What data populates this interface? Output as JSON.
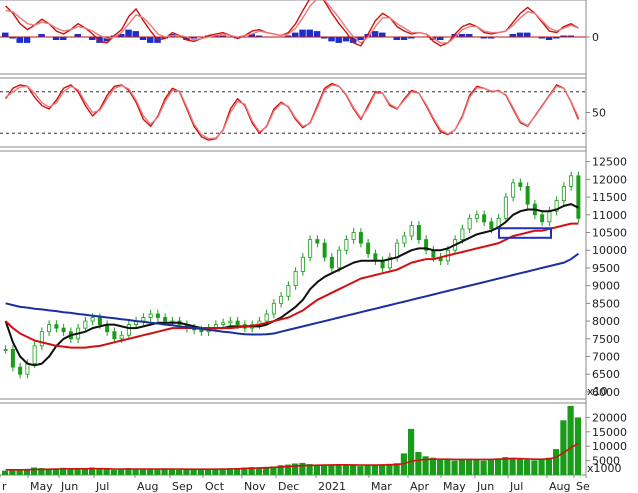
{
  "chart_data": [
    {
      "type": "line",
      "panel": "macd",
      "ytick_labels": [
        "0"
      ],
      "series": [
        {
          "color": "#d01010",
          "values": [
            2.1,
            1.6,
            0.9,
            0.5,
            0.8,
            1.2,
            0.9,
            0.4,
            0.2,
            0.5,
            0.9,
            0.6,
            0.2,
            -0.3,
            -0.4,
            0.1,
            0.5,
            1.4,
            1.9,
            1.1,
            0.4,
            -0.2,
            -0.1,
            0.3,
            0.1,
            -0.2,
            -0.3,
            -0.1,
            0.1,
            0.2,
            0.3,
            0.1,
            -0.1,
            0.1,
            0.4,
            0.5,
            0.3,
            0.2,
            0.1,
            0.3,
            0.9,
            1.8,
            2.6,
            3.0,
            2.4,
            1.6,
            0.9,
            0.3,
            -0.4,
            -0.6,
            0.2,
            1.1,
            1.6,
            1.3,
            0.7,
            0.4,
            0.2,
            0.3,
            0.2,
            -0.3,
            -0.6,
            -0.4,
            0.2,
            0.7,
            0.9,
            0.7,
            0.3,
            0.2,
            0.3,
            0.4,
            1.0,
            1.6,
            2.0,
            1.6,
            1.0,
            0.4,
            0.3,
            0.7,
            0.9,
            0.6
          ]
        },
        {
          "color": "#e87a7a",
          "values": [
            1.8,
            1.7,
            1.3,
            0.9,
            0.8,
            1.0,
            0.9,
            0.6,
            0.4,
            0.5,
            0.7,
            0.6,
            0.4,
            0.1,
            -0.1,
            0.0,
            0.3,
            0.9,
            1.5,
            1.3,
            0.8,
            0.2,
            0.0,
            0.1,
            0.1,
            0.0,
            -0.2,
            -0.1,
            0.0,
            0.1,
            0.2,
            0.1,
            0.0,
            0.1,
            0.2,
            0.4,
            0.3,
            0.2,
            0.1,
            0.2,
            0.6,
            1.3,
            2.1,
            2.6,
            2.5,
            1.9,
            1.3,
            0.6,
            0.0,
            -0.4,
            0.0,
            0.7,
            1.3,
            1.3,
            0.9,
            0.6,
            0.3,
            0.3,
            0.2,
            -0.1,
            -0.4,
            -0.4,
            0.0,
            0.5,
            0.7,
            0.7,
            0.4,
            0.3,
            0.3,
            0.4,
            0.8,
            1.3,
            1.7,
            1.6,
            1.1,
            0.6,
            0.4,
            0.6,
            0.8,
            0.6
          ]
        }
      ],
      "histogram_values": [
        0.3,
        -0.1,
        -0.4,
        -0.4,
        0.0,
        0.2,
        0.0,
        -0.2,
        -0.2,
        0.0,
        0.2,
        0.0,
        -0.2,
        -0.4,
        -0.3,
        0.1,
        0.2,
        0.5,
        0.4,
        -0.2,
        -0.4,
        -0.4,
        -0.1,
        0.2,
        0.0,
        -0.2,
        -0.1,
        0.0,
        0.1,
        0.1,
        0.1,
        0.0,
        -0.1,
        0.0,
        0.2,
        0.1,
        0.0,
        0.0,
        0.0,
        0.1,
        0.3,
        0.5,
        0.5,
        0.4,
        -0.1,
        -0.3,
        -0.4,
        -0.3,
        -0.4,
        -0.2,
        0.2,
        0.4,
        0.3,
        0.0,
        -0.2,
        -0.2,
        -0.1,
        0.0,
        0.0,
        -0.2,
        -0.2,
        0.0,
        0.2,
        0.2,
        0.2,
        0.0,
        -0.1,
        -0.1,
        0.0,
        0.0,
        0.2,
        0.3,
        0.3,
        0.0,
        -0.1,
        -0.2,
        -0.1,
        0.1,
        0.1,
        0.0
      ],
      "histogram_color": "#1a2fd0",
      "ylim": [
        -2.5,
        2.5
      ],
      "zero_line": true
    },
    {
      "type": "line",
      "panel": "stochastic",
      "ytick_labels": [
        "50"
      ],
      "dashed_levels": [
        80,
        20
      ],
      "ylim": [
        0,
        100
      ],
      "series": [
        {
          "color": "#d01010",
          "values": [
            70,
            85,
            90,
            88,
            72,
            60,
            55,
            68,
            85,
            90,
            80,
            60,
            45,
            55,
            75,
            88,
            90,
            82,
            65,
            40,
            30,
            45,
            70,
            85,
            80,
            55,
            30,
            15,
            10,
            12,
            25,
            55,
            70,
            60,
            35,
            20,
            30,
            55,
            65,
            58,
            40,
            28,
            35,
            60,
            85,
            92,
            88,
            75,
            55,
            40,
            60,
            80,
            78,
            60,
            55,
            70,
            82,
            78,
            60,
            40,
            22,
            18,
            25,
            45,
            75,
            88,
            85,
            80,
            82,
            75,
            55,
            35,
            30,
            45,
            60,
            75,
            90,
            85,
            65,
            40
          ]
        },
        {
          "color": "#e87a7a",
          "values": [
            72,
            80,
            87,
            88,
            78,
            64,
            58,
            64,
            80,
            88,
            83,
            65,
            50,
            53,
            70,
            85,
            89,
            84,
            68,
            45,
            33,
            43,
            66,
            82,
            81,
            58,
            33,
            18,
            12,
            13,
            24,
            50,
            66,
            62,
            38,
            22,
            29,
            52,
            63,
            59,
            42,
            30,
            34,
            57,
            82,
            90,
            88,
            76,
            57,
            42,
            57,
            78,
            78,
            62,
            56,
            68,
            80,
            78,
            62,
            42,
            25,
            19,
            25,
            43,
            72,
            86,
            85,
            81,
            81,
            76,
            57,
            37,
            31,
            44,
            59,
            74,
            88,
            85,
            66,
            43
          ]
        }
      ]
    },
    {
      "type": "line",
      "panel": "price",
      "ylim": [
        5800,
        12800
      ],
      "ytick_labels": [
        "12500",
        "12000",
        "11500",
        "11000",
        "10500",
        "10000",
        "9500",
        "9000",
        "8500",
        "8000",
        "7500",
        "7000",
        "6500",
        "6000"
      ],
      "multiplier_label": "x10",
      "x_labels": [
        "r",
        "May",
        "Jun",
        "Jul",
        "Aug",
        "Sep",
        "Oct",
        "Nov",
        "Dec",
        "2021",
        "Mar",
        "Apr",
        "May",
        "Jun",
        "Jul",
        "Aug",
        "Se"
      ],
      "price_series": {
        "color": "#1a9c1a",
        "values": [
          7200,
          6700,
          6500,
          6800,
          7300,
          7700,
          7900,
          7800,
          7700,
          7500,
          7800,
          8000,
          8100,
          7900,
          7700,
          7500,
          7600,
          7900,
          8000,
          8100,
          8200,
          8100,
          8000,
          8000,
          7900,
          7800,
          7750,
          7700,
          7800,
          7900,
          7950,
          8000,
          7900,
          7800,
          7900,
          8000,
          8200,
          8500,
          8700,
          9000,
          9400,
          9800,
          10300,
          10200,
          9800,
          9500,
          10000,
          10300,
          10500,
          10200,
          9900,
          9700,
          9500,
          9800,
          10200,
          10400,
          10700,
          10300,
          10000,
          9800,
          9700,
          10000,
          10300,
          10600,
          10900,
          11000,
          10800,
          10600,
          10900,
          11500,
          11900,
          11800,
          11300,
          11000,
          10800,
          11100,
          11400,
          11800,
          12100,
          10900
        ]
      },
      "ma_series": [
        {
          "color": "#101010",
          "values": [
            8000,
            7400,
            7000,
            6800,
            6750,
            6800,
            7000,
            7300,
            7500,
            7600,
            7650,
            7700,
            7800,
            7850,
            7900,
            7900,
            7850,
            7800,
            7800,
            7850,
            7900,
            7950,
            7950,
            7950,
            7950,
            7900,
            7850,
            7800,
            7800,
            7800,
            7800,
            7850,
            7850,
            7850,
            7850,
            7850,
            7900,
            8000,
            8100,
            8250,
            8400,
            8600,
            8900,
            9100,
            9250,
            9350,
            9450,
            9550,
            9650,
            9700,
            9700,
            9700,
            9700,
            9750,
            9800,
            9900,
            10000,
            10050,
            10050,
            10000,
            10000,
            10050,
            10150,
            10250,
            10350,
            10450,
            10500,
            10550,
            10650,
            10800,
            11000,
            11100,
            11150,
            11150,
            11100,
            11100,
            11150,
            11250,
            11300,
            11200
          ]
        },
        {
          "color": "#d01010",
          "values": [
            8000,
            7800,
            7650,
            7550,
            7450,
            7400,
            7350,
            7300,
            7280,
            7250,
            7250,
            7250,
            7280,
            7300,
            7350,
            7400,
            7450,
            7500,
            7550,
            7600,
            7650,
            7700,
            7750,
            7800,
            7800,
            7800,
            7800,
            7800,
            7800,
            7800,
            7800,
            7800,
            7820,
            7850,
            7870,
            7900,
            7950,
            8000,
            8050,
            8100,
            8200,
            8300,
            8450,
            8600,
            8700,
            8800,
            8900,
            9000,
            9100,
            9200,
            9250,
            9300,
            9350,
            9400,
            9450,
            9550,
            9650,
            9700,
            9750,
            9750,
            9800,
            9850,
            9900,
            9950,
            10000,
            10050,
            10100,
            10150,
            10200,
            10300,
            10400,
            10450,
            10500,
            10550,
            10550,
            10600,
            10650,
            10700,
            10750,
            10750
          ]
        },
        {
          "color": "#1a2fa0",
          "values": [
            8500,
            8450,
            8400,
            8380,
            8350,
            8330,
            8300,
            8280,
            8250,
            8230,
            8200,
            8180,
            8150,
            8130,
            8100,
            8080,
            8050,
            8030,
            8000,
            7980,
            7950,
            7930,
            7900,
            7880,
            7850,
            7830,
            7800,
            7780,
            7750,
            7730,
            7700,
            7680,
            7650,
            7630,
            7620,
            7620,
            7630,
            7650,
            7700,
            7750,
            7800,
            7850,
            7900,
            7950,
            8000,
            8050,
            8100,
            8150,
            8200,
            8250,
            8300,
            8350,
            8400,
            8450,
            8500,
            8550,
            8600,
            8650,
            8700,
            8750,
            8800,
            8850,
            8900,
            8950,
            9000,
            9050,
            9100,
            9150,
            9200,
            9250,
            9300,
            9350,
            9400,
            9450,
            9500,
            9550,
            9600,
            9650,
            9750,
            9900
          ]
        }
      ],
      "highlight_box": {
        "color": "#2030c0",
        "range": [
          10350,
          10620
        ]
      }
    },
    {
      "type": "bar",
      "panel": "volume",
      "ylim": [
        0,
        25000
      ],
      "ytick_labels": [
        "20000",
        "15000",
        "10000",
        "5000"
      ],
      "multiplier_label": "x1000",
      "bar_color": "#1a9c1a",
      "values": [
        1500,
        1700,
        1600,
        2000,
        2600,
        2400,
        2200,
        2000,
        2500,
        2300,
        2100,
        2400,
        2600,
        2200,
        2000,
        1800,
        2100,
        2400,
        2200,
        2000,
        1900,
        2100,
        2300,
        2000,
        1800,
        1900,
        2100,
        2000,
        1900,
        2000,
        2200,
        2400,
        2300,
        2600,
        2700,
        2500,
        2800,
        3000,
        3400,
        3600,
        4000,
        4200,
        3800,
        3600,
        3400,
        3600,
        3800,
        3500,
        3300,
        3100,
        3300,
        3500,
        3600,
        3900,
        4100,
        7500,
        16000,
        8000,
        6500,
        6000,
        5500,
        5200,
        5000,
        5300,
        5600,
        5200,
        5000,
        5400,
        5800,
        6200,
        6000,
        5600,
        5300,
        5100,
        5400,
        6000,
        9000,
        19000,
        24000,
        20000
      ],
      "ma": {
        "color": "#d01010",
        "values": [
          1800,
          1800,
          1800,
          1850,
          1900,
          1950,
          2000,
          2050,
          2100,
          2150,
          2150,
          2150,
          2200,
          2200,
          2150,
          2100,
          2100,
          2100,
          2100,
          2100,
          2100,
          2100,
          2100,
          2100,
          2050,
          2000,
          2000,
          2000,
          2000,
          2000,
          2050,
          2100,
          2150,
          2250,
          2350,
          2450,
          2550,
          2650,
          2800,
          2950,
          3100,
          3250,
          3350,
          3400,
          3450,
          3500,
          3550,
          3550,
          3500,
          3450,
          3450,
          3450,
          3500,
          3550,
          3600,
          4000,
          4800,
          5200,
          5400,
          5500,
          5500,
          5500,
          5400,
          5400,
          5400,
          5400,
          5400,
          5400,
          5500,
          5600,
          5700,
          5700,
          5600,
          5500,
          5500,
          5600,
          6200,
          7800,
          9500,
          11000
        ]
      }
    }
  ]
}
